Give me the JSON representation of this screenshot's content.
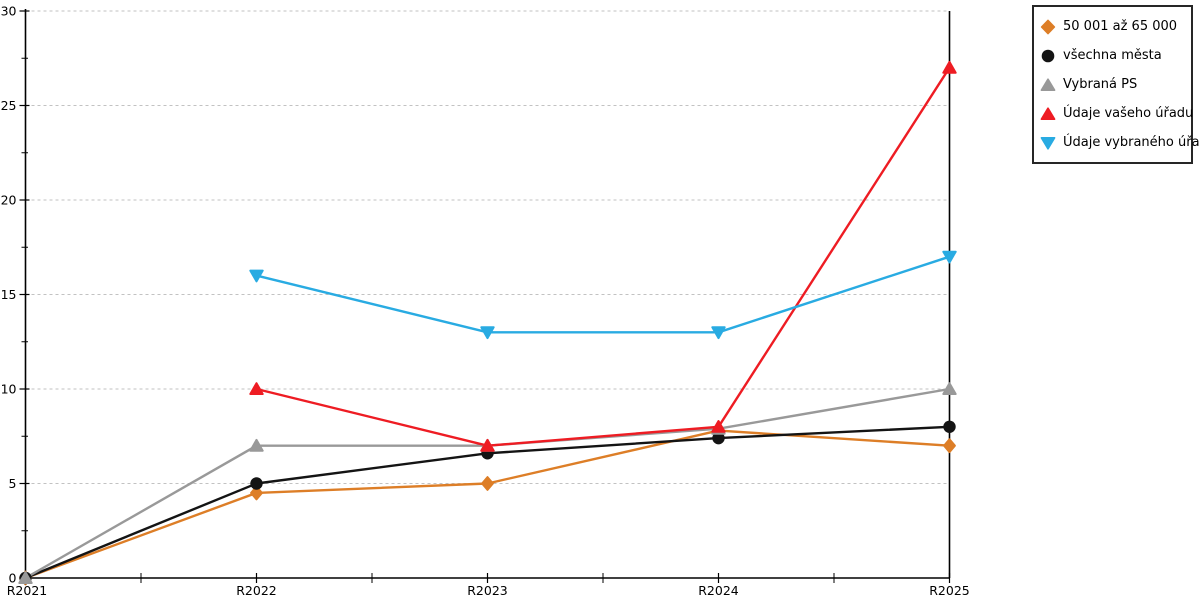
{
  "chart_data": {
    "type": "line",
    "categories": [
      "R2021",
      "R2022",
      "R2023",
      "R2024",
      "R2025"
    ],
    "y_axis": {
      "min": 0,
      "max": 30,
      "major_tick_step": 5,
      "minor_tick_step": 2.5,
      "tick_labels": [
        "0",
        "5",
        "10",
        "15",
        "20",
        "25",
        "30"
      ]
    },
    "grid": {
      "horizontal_dashed": true,
      "gridline_color": "#c2c2c2"
    },
    "axis_color": "#000000",
    "plot_background": "#ffffff",
    "legend_position": "top-right",
    "series": [
      {
        "name": "50 001 až 65 000",
        "marker": "diamond",
        "color": "#dd7e27",
        "values": [
          0,
          4.5,
          5,
          7.8,
          7
        ]
      },
      {
        "name": "všechna města",
        "marker": "circle",
        "color": "#141414",
        "values": [
          0,
          5,
          6.6,
          7.4,
          8
        ]
      },
      {
        "name": "Vybraná PS",
        "marker": "triangle-up",
        "color": "#999999",
        "values": [
          0,
          7,
          7,
          7.9,
          10
        ]
      },
      {
        "name": "Údaje vašeho úřadu",
        "marker": "triangle-up",
        "color": "#ee1c23",
        "values": [
          null,
          10,
          7,
          8,
          27
        ]
      },
      {
        "name": "Údaje vybraného úřadu",
        "marker": "triangle-down",
        "color": "#29abe2",
        "values": [
          null,
          16,
          13,
          13,
          17
        ]
      }
    ]
  }
}
